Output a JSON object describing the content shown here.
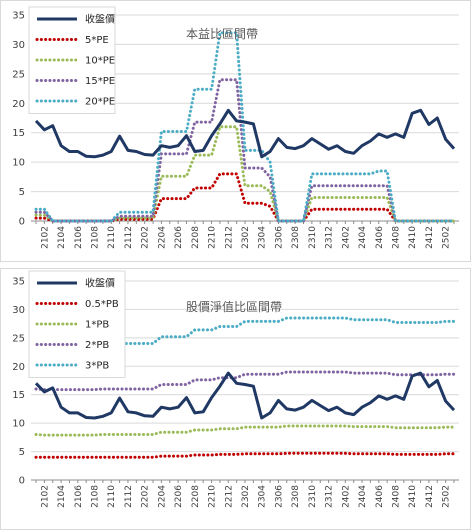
{
  "chart_data": [
    {
      "type": "line",
      "title": "本益比區間帶",
      "xlabel": "",
      "ylabel": "",
      "ylim": [
        0,
        35
      ],
      "yticks": [
        0,
        5,
        10,
        15,
        20,
        25,
        30,
        35
      ],
      "grid": true,
      "legend_position": "top-left",
      "x": [
        "2101",
        "2102",
        "2103",
        "2104",
        "2105",
        "2106",
        "2107",
        "2108",
        "2109",
        "2110",
        "2111",
        "2112",
        "2201",
        "2202",
        "2203",
        "2204",
        "2205",
        "2206",
        "2207",
        "2208",
        "2209",
        "2210",
        "2211",
        "2212",
        "2301",
        "2302",
        "2303",
        "2304",
        "2305",
        "2306",
        "2307",
        "2308",
        "2309",
        "2310",
        "2311",
        "2312",
        "2401",
        "2402",
        "2403",
        "2404",
        "2405",
        "2406",
        "2407",
        "2408",
        "2409",
        "2410",
        "2411",
        "2412",
        "2501",
        "2502",
        "2503"
      ],
      "xtick_labels": [
        "2102",
        "2104",
        "2106",
        "2108",
        "2110",
        "2112",
        "2202",
        "2204",
        "2206",
        "2208",
        "2210",
        "2212",
        "2302",
        "2304",
        "2306",
        "2308",
        "2310",
        "2312",
        "2402",
        "2404",
        "2406",
        "2408",
        "2410",
        "2412",
        "2502"
      ],
      "series": [
        {
          "name": "收盤價",
          "color": "#1f3864",
          "style": "solid",
          "values": [
            17,
            15.5,
            16.2,
            12.8,
            11.8,
            11.8,
            11,
            10.9,
            11.2,
            11.8,
            14.4,
            12,
            11.8,
            11.3,
            11.2,
            12.8,
            12.5,
            12.8,
            14.5,
            11.8,
            12,
            14.5,
            16.5,
            18.8,
            17,
            16.8,
            16.5,
            10.9,
            11.8,
            14,
            12.5,
            12.3,
            12.8,
            14,
            13.1,
            12.2,
            12.8,
            11.8,
            11.5,
            12.8,
            13.6,
            14.8,
            14.2,
            14.8,
            14.2,
            18.3,
            18.8,
            16.4,
            17.5,
            13.9,
            12.3
          ]
        },
        {
          "name": "5*PE",
          "color": "#c00000",
          "style": "dotted",
          "values": [
            0.5,
            0.5,
            0,
            0,
            0,
            0,
            0,
            0,
            0,
            0,
            0.3,
            0.3,
            0.3,
            0.3,
            0.3,
            3.8,
            3.8,
            3.8,
            3.8,
            5.6,
            5.6,
            5.6,
            8,
            8,
            8,
            3,
            3,
            3,
            2.5,
            0,
            0,
            0,
            0,
            2,
            2,
            2,
            2,
            2,
            2,
            2,
            2,
            2,
            2,
            0,
            0,
            0,
            0,
            0,
            0,
            0,
            0
          ]
        },
        {
          "name": "10*PE",
          "color": "#9bbb59",
          "style": "dotted",
          "values": [
            1,
            1,
            0,
            0,
            0,
            0,
            0,
            0,
            0,
            0,
            0.5,
            0.5,
            0.5,
            0.5,
            0.5,
            7.6,
            7.6,
            7.6,
            7.6,
            11.2,
            11.2,
            11.2,
            16,
            16,
            16,
            6,
            6,
            6,
            5,
            0,
            0,
            0,
            0,
            4,
            4,
            4,
            4,
            4,
            4,
            4,
            4,
            4,
            4,
            0,
            0,
            0,
            0,
            0,
            0,
            0,
            0
          ]
        },
        {
          "name": "15*PE",
          "color": "#8064a2",
          "style": "dotted",
          "values": [
            1.5,
            1.5,
            0,
            0,
            0,
            0,
            0,
            0,
            0,
            0,
            0.8,
            0.8,
            0.8,
            0.8,
            0.8,
            11.4,
            11.4,
            11.4,
            11.4,
            16.8,
            16.8,
            16.8,
            24,
            24,
            24,
            9,
            9,
            9,
            7.5,
            0,
            0,
            0,
            0,
            6,
            6,
            6,
            6,
            6,
            6,
            6,
            6,
            6,
            6,
            0,
            0,
            0,
            0,
            0,
            0,
            0,
            0
          ]
        },
        {
          "name": "20*PE",
          "color": "#4bacc6",
          "style": "dotted",
          "values": [
            2,
            2,
            0,
            0,
            0,
            0,
            0,
            0,
            0,
            0,
            1.5,
            1.5,
            1.5,
            1.5,
            1.5,
            15.2,
            15.2,
            15.2,
            15.2,
            22.4,
            22.4,
            22.4,
            32,
            32,
            32,
            12,
            12,
            12,
            10,
            0,
            0,
            0,
            0,
            8,
            8,
            8,
            8,
            8,
            8,
            8,
            8,
            8.5,
            8.5,
            0,
            0,
            0,
            0,
            0,
            0,
            0,
            0
          ]
        }
      ]
    },
    {
      "type": "line",
      "title": "股價淨值比區間帶",
      "xlabel": "",
      "ylabel": "",
      "ylim": [
        0,
        35
      ],
      "yticks": [
        0,
        5,
        10,
        15,
        20,
        25,
        30,
        35
      ],
      "grid": true,
      "legend_position": "top-left",
      "x": [
        "2101",
        "2102",
        "2103",
        "2104",
        "2105",
        "2106",
        "2107",
        "2108",
        "2109",
        "2110",
        "2111",
        "2112",
        "2201",
        "2202",
        "2203",
        "2204",
        "2205",
        "2206",
        "2207",
        "2208",
        "2209",
        "2210",
        "2211",
        "2212",
        "2301",
        "2302",
        "2303",
        "2304",
        "2305",
        "2306",
        "2307",
        "2308",
        "2309",
        "2310",
        "2311",
        "2312",
        "2401",
        "2402",
        "2403",
        "2404",
        "2405",
        "2406",
        "2407",
        "2408",
        "2409",
        "2410",
        "2411",
        "2412",
        "2501",
        "2502",
        "2503"
      ],
      "xtick_labels": [
        "2102",
        "2104",
        "2106",
        "2108",
        "2110",
        "2112",
        "2202",
        "2204",
        "2206",
        "2208",
        "2210",
        "2212",
        "2302",
        "2304",
        "2306",
        "2308",
        "2310",
        "2312",
        "2402",
        "2404",
        "2406",
        "2408",
        "2410",
        "2412",
        "2502"
      ],
      "series": [
        {
          "name": "收盤價",
          "color": "#1f3864",
          "style": "solid",
          "values": [
            17,
            15.5,
            16.2,
            12.8,
            11.8,
            11.8,
            11,
            10.9,
            11.2,
            11.8,
            14.4,
            12,
            11.8,
            11.3,
            11.2,
            12.8,
            12.5,
            12.8,
            14.5,
            11.8,
            12,
            14.5,
            16.5,
            18.8,
            17,
            16.8,
            16.5,
            10.9,
            11.8,
            14,
            12.5,
            12.3,
            12.8,
            14,
            13.1,
            12.2,
            12.8,
            11.8,
            11.5,
            12.8,
            13.6,
            14.8,
            14.2,
            14.8,
            14.2,
            18.3,
            18.8,
            16.4,
            17.5,
            13.9,
            12.3
          ]
        },
        {
          "name": "0.5*PB",
          "color": "#c00000",
          "style": "dotted",
          "values": [
            4,
            4,
            4,
            4,
            4,
            4,
            4,
            4,
            4,
            4,
            4,
            4,
            4,
            4,
            4,
            4.2,
            4.2,
            4.2,
            4.2,
            4.4,
            4.4,
            4.4,
            4.5,
            4.5,
            4.5,
            4.6,
            4.6,
            4.6,
            4.6,
            4.6,
            4.7,
            4.7,
            4.7,
            4.7,
            4.7,
            4.7,
            4.7,
            4.7,
            4.6,
            4.6,
            4.6,
            4.6,
            4.6,
            4.5,
            4.5,
            4.5,
            4.5,
            4.5,
            4.5,
            4.6,
            4.6
          ]
        },
        {
          "name": "1*PB",
          "color": "#9bbb59",
          "style": "dotted",
          "values": [
            8,
            7.9,
            7.9,
            7.9,
            7.9,
            7.9,
            7.9,
            7.9,
            8,
            8,
            8,
            8,
            8,
            8,
            8,
            8.4,
            8.4,
            8.4,
            8.4,
            8.8,
            8.8,
            8.8,
            9,
            9,
            9,
            9.3,
            9.3,
            9.3,
            9.3,
            9.3,
            9.5,
            9.5,
            9.5,
            9.5,
            9.5,
            9.5,
            9.5,
            9.5,
            9.4,
            9.4,
            9.4,
            9.4,
            9.4,
            9.2,
            9.2,
            9.2,
            9.2,
            9.2,
            9.2,
            9.3,
            9.3
          ]
        },
        {
          "name": "2*PB",
          "color": "#8064a2",
          "style": "dotted",
          "values": [
            16,
            15.9,
            15.9,
            15.9,
            15.9,
            15.9,
            15.9,
            15.9,
            16,
            16,
            16,
            16,
            16,
            16,
            16,
            16.8,
            16.8,
            16.8,
            16.8,
            17.6,
            17.6,
            17.6,
            18,
            18,
            18,
            18.6,
            18.6,
            18.6,
            18.6,
            18.6,
            19,
            19,
            19,
            19,
            19,
            19,
            19,
            19,
            18.8,
            18.8,
            18.8,
            18.8,
            18.8,
            18.5,
            18.5,
            18.5,
            18.5,
            18.5,
            18.5,
            18.6,
            18.6
          ]
        },
        {
          "name": "3*PB",
          "color": "#4bacc6",
          "style": "dotted",
          "values": [
            24,
            23.9,
            23.9,
            23.9,
            23.9,
            23.9,
            23.9,
            23.9,
            24,
            24,
            24,
            24,
            24,
            24,
            24,
            25.2,
            25.2,
            25.2,
            25.2,
            26.4,
            26.4,
            26.4,
            27,
            27,
            27,
            27.9,
            27.9,
            27.9,
            27.9,
            27.9,
            28.5,
            28.5,
            28.5,
            28.5,
            28.5,
            28.5,
            28.5,
            28.5,
            28.2,
            28.2,
            28.2,
            28.2,
            28.2,
            27.7,
            27.7,
            27.7,
            27.7,
            27.7,
            27.7,
            27.9,
            27.9
          ]
        }
      ]
    }
  ]
}
